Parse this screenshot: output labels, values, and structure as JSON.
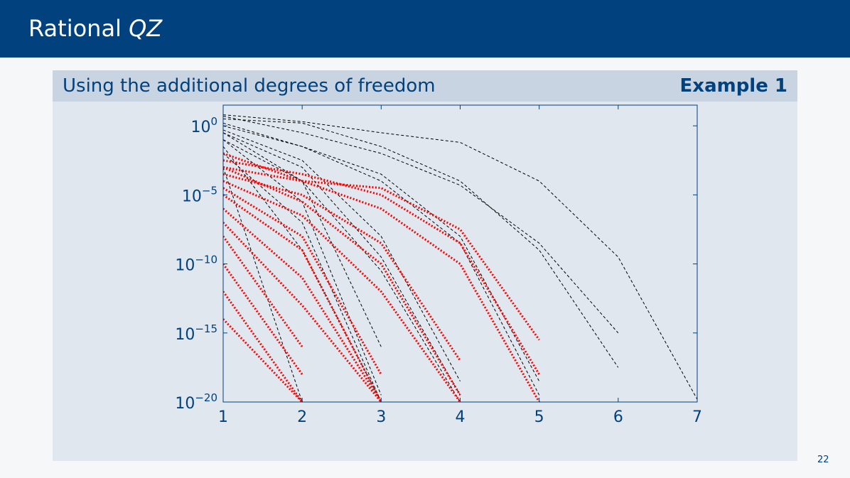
{
  "header": {
    "title_plain": "Rational ",
    "title_math": "QZ"
  },
  "block": {
    "title": "Using the additional degrees of freedom",
    "tag": "Example 1"
  },
  "page_number": "22",
  "colors": {
    "header_bg": "#00417e",
    "block_head_bg": "#c8d4e1",
    "block_bg": "#e1e7ee",
    "axis": "#00417e",
    "series_dashed": "#000000",
    "series_dotted": "#ff0000"
  },
  "chart_data": {
    "type": "line",
    "title": "",
    "xlabel": "",
    "ylabel": "",
    "xlim": [
      1,
      7
    ],
    "ylim_exponent": [
      -20,
      1.5
    ],
    "y_scale": "log",
    "x_ticks": [
      "1",
      "2",
      "3",
      "4",
      "5",
      "6",
      "7"
    ],
    "y_ticks": [
      {
        "base": "10",
        "exp": "0",
        "value_exp": 0
      },
      {
        "base": "10",
        "exp": "−5",
        "value_exp": -5
      },
      {
        "base": "10",
        "exp": "−10",
        "value_exp": -10
      },
      {
        "base": "10",
        "exp": "−15",
        "value_exp": -15
      },
      {
        "base": "10",
        "exp": "−20",
        "value_exp": -20
      }
    ],
    "grid": false,
    "legend": "none",
    "series": [
      {
        "style": "dashed",
        "color": "#000000",
        "x": [
          1,
          2,
          3,
          4,
          5,
          6,
          7
        ],
        "y_exp": [
          0.8,
          0.3,
          -0.5,
          -1.2,
          -4.0,
          -9.5,
          -19.8
        ]
      },
      {
        "style": "dashed",
        "color": "#000000",
        "x": [
          1,
          2,
          3,
          4,
          5,
          6
        ],
        "y_exp": [
          0.5,
          0.2,
          -1.5,
          -4.0,
          -9.0,
          -17.5
        ]
      },
      {
        "style": "dashed",
        "color": "#000000",
        "x": [
          1,
          2,
          3,
          4,
          5,
          6
        ],
        "y_exp": [
          0.7,
          -0.5,
          -2.0,
          -4.3,
          -8.5,
          -15.0
        ]
      },
      {
        "style": "dashed",
        "color": "#000000",
        "x": [
          1,
          2,
          3,
          4,
          5
        ],
        "y_exp": [
          0.2,
          -1.5,
          -4.0,
          -8.5,
          -19.5
        ]
      },
      {
        "style": "dashed",
        "color": "#000000",
        "x": [
          1,
          2,
          3,
          4,
          5
        ],
        "y_exp": [
          0.0,
          -1.5,
          -3.5,
          -8.0,
          -18.5
        ]
      },
      {
        "style": "dashed",
        "color": "#000000",
        "x": [
          1,
          2,
          3,
          4
        ],
        "y_exp": [
          -0.5,
          -3.0,
          -9.5,
          -19.5
        ]
      },
      {
        "style": "dashed",
        "color": "#000000",
        "x": [
          1,
          2,
          3,
          4
        ],
        "y_exp": [
          -0.3,
          -2.5,
          -8.0,
          -18.5
        ]
      },
      {
        "style": "dashed",
        "color": "#000000",
        "x": [
          1,
          2,
          3,
          4
        ],
        "y_exp": [
          -1.0,
          -4.0,
          -10.5,
          -20.0
        ]
      },
      {
        "style": "dashed",
        "color": "#000000",
        "x": [
          1,
          2,
          3
        ],
        "y_exp": [
          -0.5,
          -4.0,
          -16.0
        ]
      },
      {
        "style": "dashed",
        "color": "#000000",
        "x": [
          1,
          2,
          3
        ],
        "y_exp": [
          -1.0,
          -5.5,
          -19.5
        ]
      },
      {
        "style": "dashed",
        "color": "#000000",
        "x": [
          1,
          2,
          3
        ],
        "y_exp": [
          -2.0,
          -7.0,
          -20.0
        ]
      },
      {
        "style": "dashed",
        "color": "#000000",
        "x": [
          1,
          2,
          3
        ],
        "y_exp": [
          -1.5,
          -9.0,
          -20.0
        ]
      },
      {
        "style": "dashed",
        "color": "#000000",
        "x": [
          1,
          2
        ],
        "y_exp": [
          -3.0,
          -20.0
        ]
      },
      {
        "style": "dotted",
        "color": "#ff0000",
        "x": [
          1,
          2,
          3,
          4,
          5
        ],
        "y_exp": [
          -3.0,
          -4.0,
          -4.5,
          -7.5,
          -15.5
        ]
      },
      {
        "style": "dotted",
        "color": "#ff0000",
        "x": [
          1,
          2,
          3,
          4,
          5
        ],
        "y_exp": [
          -2.5,
          -3.5,
          -5.0,
          -8.5,
          -18.0
        ]
      },
      {
        "style": "dotted",
        "color": "#ff0000",
        "x": [
          1,
          2,
          3,
          4,
          5
        ],
        "y_exp": [
          -2.0,
          -4.0,
          -6.0,
          -10.0,
          -20.0
        ]
      },
      {
        "style": "dotted",
        "color": "#ff0000",
        "x": [
          1,
          2,
          3,
          4
        ],
        "y_exp": [
          -3.5,
          -5.0,
          -8.5,
          -17.0
        ]
      },
      {
        "style": "dotted",
        "color": "#ff0000",
        "x": [
          1,
          2,
          3,
          4
        ],
        "y_exp": [
          -3.0,
          -5.5,
          -10.0,
          -19.5
        ]
      },
      {
        "style": "dotted",
        "color": "#ff0000",
        "x": [
          1,
          2,
          3,
          4
        ],
        "y_exp": [
          -4.0,
          -6.5,
          -12.0,
          -20.0
        ]
      },
      {
        "style": "dotted",
        "color": "#ff0000",
        "x": [
          1,
          2,
          3
        ],
        "y_exp": [
          -4.5,
          -8.0,
          -18.0
        ]
      },
      {
        "style": "dotted",
        "color": "#ff0000",
        "x": [
          1,
          2,
          3
        ],
        "y_exp": [
          -5.0,
          -9.0,
          -20.0
        ]
      },
      {
        "style": "dotted",
        "color": "#ff0000",
        "x": [
          1,
          2,
          3
        ],
        "y_exp": [
          -6.0,
          -11.0,
          -20.0
        ]
      },
      {
        "style": "dotted",
        "color": "#ff0000",
        "x": [
          1,
          2,
          3
        ],
        "y_exp": [
          -7.0,
          -13.0,
          -20.0
        ]
      },
      {
        "style": "dotted",
        "color": "#ff0000",
        "x": [
          1,
          2
        ],
        "y_exp": [
          -8.0,
          -16.0
        ]
      },
      {
        "style": "dotted",
        "color": "#ff0000",
        "x": [
          1,
          2
        ],
        "y_exp": [
          -10.0,
          -18.0
        ]
      },
      {
        "style": "dotted",
        "color": "#ff0000",
        "x": [
          1,
          2
        ],
        "y_exp": [
          -12.0,
          -20.0
        ]
      },
      {
        "style": "dotted",
        "color": "#ff0000",
        "x": [
          1,
          2
        ],
        "y_exp": [
          -14.0,
          -20.0
        ]
      }
    ]
  }
}
